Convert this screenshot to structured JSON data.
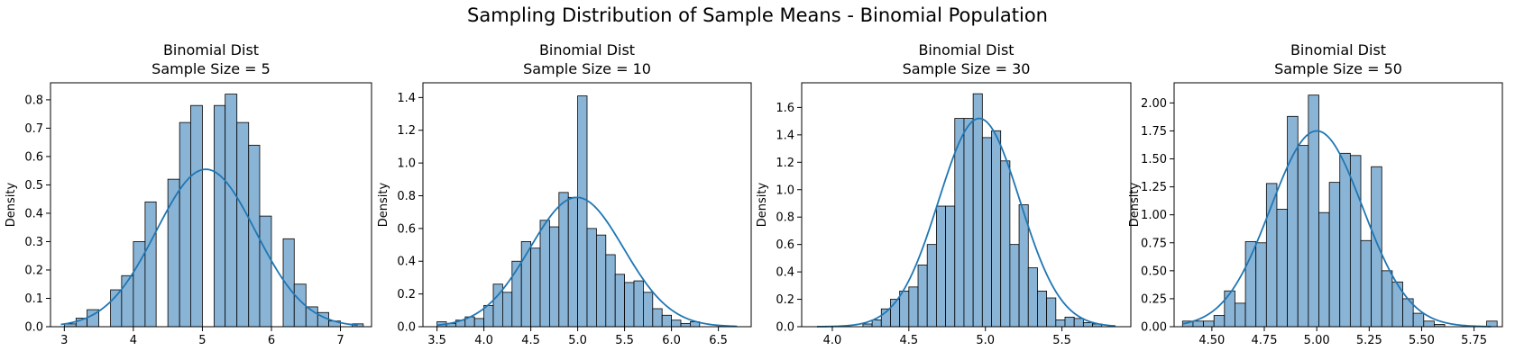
{
  "figure": {
    "suptitle": "Sampling Distribution of Sample Means - Binomial Population"
  },
  "style": {
    "bar_fill": "#8ab4d6",
    "bar_edge": "#000000",
    "kde_color": "#1f77b4"
  },
  "chart_data": [
    {
      "type": "histogram",
      "title_line1": "Binomial Dist",
      "title_line2": "Sample Size = 5",
      "ylabel": "Density",
      "xlim": [
        2.8,
        7.45
      ],
      "ylim": [
        0,
        0.86
      ],
      "xticks": [
        3,
        4,
        5,
        6,
        7
      ],
      "xtick_labels": [
        "3",
        "4",
        "5",
        "6",
        "7"
      ],
      "yticks": [
        0.0,
        0.1,
        0.2,
        0.3,
        0.4,
        0.5,
        0.6,
        0.7,
        0.8
      ],
      "ytick_labels": [
        "0.0",
        "0.1",
        "0.2",
        "0.3",
        "0.4",
        "0.5",
        "0.6",
        "0.7",
        "0.8"
      ],
      "bins": [
        [
          3.0,
          3.17,
          0.01
        ],
        [
          3.17,
          3.33,
          0.03
        ],
        [
          3.33,
          3.5,
          0.06
        ],
        [
          3.67,
          3.83,
          0.13
        ],
        [
          3.83,
          4.0,
          0.18
        ],
        [
          4.0,
          4.17,
          0.3
        ],
        [
          4.17,
          4.33,
          0.44
        ],
        [
          4.5,
          4.67,
          0.52
        ],
        [
          4.67,
          4.83,
          0.72
        ],
        [
          4.83,
          5.0,
          0.78
        ],
        [
          5.17,
          5.33,
          0.78
        ],
        [
          5.33,
          5.5,
          0.82
        ],
        [
          5.5,
          5.67,
          0.72
        ],
        [
          5.67,
          5.83,
          0.64
        ],
        [
          5.83,
          6.0,
          0.39
        ],
        [
          6.17,
          6.33,
          0.31
        ],
        [
          6.33,
          6.5,
          0.15
        ],
        [
          6.5,
          6.67,
          0.07
        ],
        [
          6.67,
          6.83,
          0.05
        ],
        [
          6.83,
          7.0,
          0.02
        ],
        [
          7.17,
          7.33,
          0.01
        ]
      ],
      "kde": {
        "mean": 5.05,
        "sd": 0.72,
        "peak": 0.555,
        "x_range": [
          2.95,
          7.25
        ]
      }
    },
    {
      "type": "histogram",
      "title_line1": "Binomial Dist",
      "title_line2": "Sample Size = 10",
      "ylabel": "Density",
      "xlim": [
        3.35,
        6.85
      ],
      "ylim": [
        0,
        1.49
      ],
      "xticks": [
        3.5,
        4.0,
        4.5,
        5.0,
        5.5,
        6.0,
        6.5
      ],
      "xtick_labels": [
        "3.5",
        "4.0",
        "4.5",
        "5.0",
        "5.5",
        "6.0",
        "6.5"
      ],
      "yticks": [
        0.0,
        0.2,
        0.4,
        0.6,
        0.8,
        1.0,
        1.2,
        1.4
      ],
      "ytick_labels": [
        "0.0",
        "0.2",
        "0.4",
        "0.6",
        "0.8",
        "1.0",
        "1.2",
        "1.4"
      ],
      "bins": [
        [
          3.5,
          3.6,
          0.03
        ],
        [
          3.6,
          3.7,
          0.02
        ],
        [
          3.7,
          3.8,
          0.04
        ],
        [
          3.8,
          3.9,
          0.06
        ],
        [
          3.9,
          4.0,
          0.05
        ],
        [
          4.0,
          4.1,
          0.13
        ],
        [
          4.1,
          4.2,
          0.26
        ],
        [
          4.2,
          4.3,
          0.21
        ],
        [
          4.3,
          4.4,
          0.4
        ],
        [
          4.4,
          4.5,
          0.52
        ],
        [
          4.5,
          4.6,
          0.48
        ],
        [
          4.6,
          4.7,
          0.65
        ],
        [
          4.7,
          4.8,
          0.61
        ],
        [
          4.8,
          4.9,
          0.82
        ],
        [
          4.9,
          5.0,
          0.79
        ],
        [
          5.0,
          5.1,
          1.41
        ],
        [
          5.1,
          5.2,
          0.6
        ],
        [
          5.2,
          5.3,
          0.56
        ],
        [
          5.3,
          5.4,
          0.44
        ],
        [
          5.4,
          5.5,
          0.32
        ],
        [
          5.5,
          5.6,
          0.27
        ],
        [
          5.6,
          5.7,
          0.28
        ],
        [
          5.7,
          5.8,
          0.21
        ],
        [
          5.8,
          5.9,
          0.11
        ],
        [
          5.9,
          6.0,
          0.07
        ],
        [
          6.0,
          6.1,
          0.04
        ],
        [
          6.1,
          6.2,
          0.02
        ],
        [
          6.2,
          6.3,
          0.03
        ]
      ],
      "kde": {
        "mean": 4.99,
        "sd": 0.5,
        "peak": 0.79,
        "x_range": [
          3.5,
          6.7
        ]
      }
    },
    {
      "type": "histogram",
      "title_line1": "Binomial Dist",
      "title_line2": "Sample Size = 30",
      "ylabel": "Density",
      "xlim": [
        3.8,
        5.95
      ],
      "ylim": [
        0,
        1.78
      ],
      "xticks": [
        4.0,
        4.5,
        5.0,
        5.5
      ],
      "xtick_labels": [
        "4.0",
        "4.5",
        "5.0",
        "5.5"
      ],
      "yticks": [
        0.0,
        0.2,
        0.4,
        0.6,
        0.8,
        1.0,
        1.2,
        1.4,
        1.6
      ],
      "ytick_labels": [
        "0.0",
        "0.2",
        "0.4",
        "0.6",
        "0.8",
        "1.0",
        "1.2",
        "1.4",
        "1.6"
      ],
      "bins": [
        [
          4.2,
          4.26,
          0.02
        ],
        [
          4.26,
          4.32,
          0.05
        ],
        [
          4.32,
          4.38,
          0.13
        ],
        [
          4.38,
          4.44,
          0.2
        ],
        [
          4.44,
          4.5,
          0.26
        ],
        [
          4.5,
          4.56,
          0.29
        ],
        [
          4.56,
          4.62,
          0.45
        ],
        [
          4.62,
          4.68,
          0.6
        ],
        [
          4.68,
          4.74,
          0.88
        ],
        [
          4.74,
          4.8,
          0.88
        ],
        [
          4.8,
          4.86,
          1.52
        ],
        [
          4.86,
          4.92,
          1.52
        ],
        [
          4.92,
          4.98,
          1.7
        ],
        [
          4.98,
          5.04,
          1.38
        ],
        [
          5.04,
          5.1,
          1.43
        ],
        [
          5.1,
          5.16,
          1.21
        ],
        [
          5.16,
          5.22,
          0.6
        ],
        [
          5.22,
          5.28,
          0.89
        ],
        [
          5.28,
          5.34,
          0.43
        ],
        [
          5.34,
          5.4,
          0.26
        ],
        [
          5.4,
          5.46,
          0.21
        ],
        [
          5.46,
          5.52,
          0.05
        ],
        [
          5.52,
          5.58,
          0.07
        ],
        [
          5.58,
          5.64,
          0.06
        ],
        [
          5.64,
          5.7,
          0.03
        ],
        [
          5.7,
          5.76,
          0.02
        ]
      ],
      "kde": {
        "mean": 4.96,
        "sd": 0.265,
        "peak": 1.52,
        "x_range": [
          3.9,
          5.85
        ]
      }
    },
    {
      "type": "histogram",
      "title_line1": "Binomial Dist",
      "title_line2": "Sample Size = 50",
      "ylabel": "Density",
      "xlim": [
        4.32,
        5.885
      ],
      "ylim": [
        0,
        2.18
      ],
      "xticks": [
        4.5,
        4.75,
        5.0,
        5.25,
        5.5,
        5.75
      ],
      "xtick_labels": [
        "4.50",
        "4.75",
        "5.00",
        "5.25",
        "5.50",
        "5.75"
      ],
      "yticks": [
        0.0,
        0.25,
        0.5,
        0.75,
        1.0,
        1.25,
        1.5,
        1.75,
        2.0
      ],
      "ytick_labels": [
        "0.00",
        "0.25",
        "0.50",
        "0.75",
        "1.00",
        "1.25",
        "1.50",
        "1.75",
        "2.00"
      ],
      "bins": [
        [
          4.36,
          4.41,
          0.05
        ],
        [
          4.41,
          4.46,
          0.05
        ],
        [
          4.46,
          4.51,
          0.05
        ],
        [
          4.51,
          4.56,
          0.1
        ],
        [
          4.56,
          4.61,
          0.32
        ],
        [
          4.61,
          4.66,
          0.21
        ],
        [
          4.66,
          4.71,
          0.76
        ],
        [
          4.71,
          4.76,
          0.75
        ],
        [
          4.76,
          4.81,
          1.28
        ],
        [
          4.81,
          4.86,
          1.05
        ],
        [
          4.86,
          4.91,
          1.88
        ],
        [
          4.91,
          4.96,
          1.62
        ],
        [
          4.96,
          5.01,
          2.07
        ],
        [
          5.01,
          5.06,
          1.02
        ],
        [
          5.06,
          5.11,
          1.29
        ],
        [
          5.11,
          5.16,
          1.55
        ],
        [
          5.16,
          5.21,
          1.53
        ],
        [
          5.21,
          5.26,
          0.77
        ],
        [
          5.26,
          5.31,
          1.43
        ],
        [
          5.31,
          5.36,
          0.5
        ],
        [
          5.36,
          5.41,
          0.4
        ],
        [
          5.41,
          5.46,
          0.25
        ],
        [
          5.46,
          5.51,
          0.12
        ],
        [
          5.51,
          5.56,
          0.05
        ],
        [
          5.56,
          5.61,
          0.02
        ],
        [
          5.81,
          5.86,
          0.05
        ]
      ],
      "kde": {
        "mean": 5.0,
        "sd": 0.22,
        "peak": 1.75,
        "x_range": [
          4.36,
          5.83
        ]
      }
    }
  ]
}
